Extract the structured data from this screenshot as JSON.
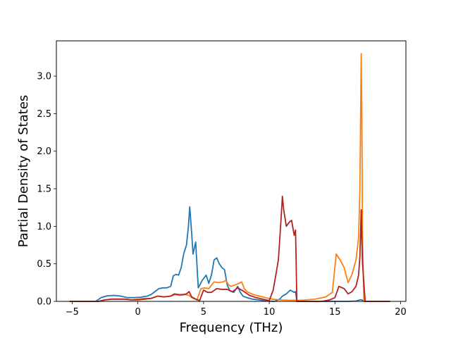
{
  "chart_data": {
    "type": "line",
    "title": "",
    "xlabel": "Frequency (THz)",
    "ylabel": "Partial Density of States",
    "xlim": [
      -6.2,
      20.4
    ],
    "ylim": [
      0.0,
      3.47
    ],
    "xticks": [
      -5,
      0,
      5,
      10,
      15,
      20
    ],
    "yticks": [
      0.0,
      0.5,
      1.0,
      1.5,
      2.0,
      2.5,
      3.0
    ],
    "xtick_labels": [
      "−5",
      "0",
      "5",
      "10",
      "15",
      "20"
    ],
    "ytick_labels": [
      "0.0",
      "0.5",
      "1.0",
      "1.5",
      "2.0",
      "2.5",
      "3.0"
    ],
    "grid": false,
    "legend": "none",
    "series": [
      {
        "color": "#1f77b4",
        "x": [
          -5.2,
          -3.2,
          -2.8,
          -2.3,
          -1.8,
          -1.3,
          -0.8,
          -0.3,
          0.2,
          0.7,
          1.0,
          1.3,
          1.6,
          1.9,
          2.2,
          2.5,
          2.7,
          2.9,
          3.1,
          3.3,
          3.5,
          3.7,
          3.85,
          3.95,
          4.1,
          4.2,
          4.4,
          4.6,
          4.9,
          5.2,
          5.4,
          5.6,
          5.8,
          6.0,
          6.2,
          6.4,
          6.6,
          6.8,
          7.0,
          7.3,
          7.6,
          7.8,
          8.0,
          8.3,
          8.7,
          9.2,
          9.8,
          10.4,
          10.8,
          11.0,
          11.3,
          11.6,
          11.9,
          12.0,
          12.1,
          12.3,
          13.0,
          14.0,
          15.0,
          16.0,
          16.6,
          16.9,
          17.05,
          17.2,
          18.0,
          19.2
        ],
        "y": [
          0.0,
          0.0,
          0.05,
          0.075,
          0.08,
          0.07,
          0.05,
          0.05,
          0.055,
          0.07,
          0.09,
          0.13,
          0.17,
          0.18,
          0.18,
          0.2,
          0.34,
          0.36,
          0.35,
          0.45,
          0.64,
          0.75,
          1.0,
          1.26,
          0.9,
          0.63,
          0.79,
          0.18,
          0.28,
          0.35,
          0.24,
          0.35,
          0.55,
          0.58,
          0.5,
          0.45,
          0.42,
          0.22,
          0.14,
          0.12,
          0.2,
          0.12,
          0.07,
          0.05,
          0.03,
          0.02,
          0.005,
          0.0,
          0.03,
          0.07,
          0.1,
          0.15,
          0.12,
          0.13,
          0.0,
          0.0,
          0.0,
          0.0,
          0.0,
          0.0,
          0.005,
          0.02,
          0.02,
          0.0,
          0.0,
          0.0
        ]
      },
      {
        "color": "#ff7f0e",
        "x": [
          -5.2,
          -3.0,
          -2.5,
          -2.0,
          -1.5,
          -1.0,
          -0.5,
          0.0,
          0.5,
          1.0,
          1.5,
          2.0,
          2.5,
          2.8,
          3.2,
          3.6,
          3.9,
          4.1,
          4.5,
          4.8,
          5.1,
          5.4,
          5.8,
          6.1,
          6.5,
          6.7,
          6.9,
          7.1,
          7.4,
          7.7,
          7.9,
          8.1,
          8.3,
          8.8,
          9.5,
          10.2,
          10.8,
          11.5,
          12.5,
          13.5,
          14.3,
          14.8,
          15.1,
          15.4,
          15.7,
          16.0,
          16.3,
          16.6,
          16.8,
          16.9,
          16.95,
          17.0,
          17.05,
          17.1,
          17.2,
          18.0,
          19.2
        ],
        "y": [
          0.0,
          0.0,
          0.02,
          0.03,
          0.03,
          0.03,
          0.02,
          0.03,
          0.04,
          0.04,
          0.07,
          0.06,
          0.07,
          0.09,
          0.08,
          0.09,
          0.08,
          0.05,
          0.02,
          0.17,
          0.18,
          0.17,
          0.26,
          0.25,
          0.26,
          0.28,
          0.22,
          0.2,
          0.22,
          0.24,
          0.26,
          0.17,
          0.13,
          0.09,
          0.06,
          0.03,
          0.02,
          0.015,
          0.015,
          0.03,
          0.06,
          0.12,
          0.63,
          0.55,
          0.45,
          0.25,
          0.36,
          0.55,
          0.85,
          1.5,
          2.4,
          3.3,
          2.4,
          0.8,
          0.0,
          0.0,
          0.0
        ]
      },
      {
        "color": "#b22222",
        "x": [
          -5.2,
          -3.0,
          -2.5,
          -2.0,
          -1.5,
          -1.0,
          -0.5,
          0.0,
          0.5,
          1.0,
          1.5,
          2.0,
          2.5,
          2.8,
          3.1,
          3.4,
          3.7,
          3.9,
          4.1,
          4.4,
          4.7,
          5.0,
          5.3,
          5.6,
          6.0,
          6.4,
          6.8,
          7.2,
          7.6,
          8.0,
          8.5,
          9.0,
          9.5,
          10.0,
          10.3,
          10.5,
          10.7,
          10.9,
          11.0,
          11.1,
          11.3,
          11.5,
          11.7,
          11.9,
          12.0,
          12.05,
          12.1,
          12.2,
          13.0,
          14.0,
          14.6,
          15.0,
          15.3,
          15.7,
          16.0,
          16.3,
          16.6,
          16.8,
          16.9,
          17.0,
          17.05,
          17.1,
          17.3,
          18.0,
          19.2
        ],
        "y": [
          0.0,
          0.0,
          0.02,
          0.03,
          0.03,
          0.03,
          0.02,
          0.02,
          0.03,
          0.04,
          0.07,
          0.06,
          0.07,
          0.1,
          0.09,
          0.09,
          0.1,
          0.13,
          0.06,
          0.03,
          0.01,
          0.15,
          0.12,
          0.12,
          0.17,
          0.16,
          0.16,
          0.13,
          0.18,
          0.14,
          0.08,
          0.05,
          0.03,
          0.01,
          0.15,
          0.35,
          0.56,
          1.1,
          1.4,
          1.22,
          1.0,
          1.05,
          1.08,
          0.88,
          0.95,
          0.5,
          0.0,
          0.0,
          0.0,
          0.0,
          0.02,
          0.05,
          0.2,
          0.17,
          0.1,
          0.13,
          0.2,
          0.35,
          0.6,
          1.22,
          0.8,
          0.5,
          0.0,
          0.0,
          0.0
        ]
      }
    ]
  }
}
